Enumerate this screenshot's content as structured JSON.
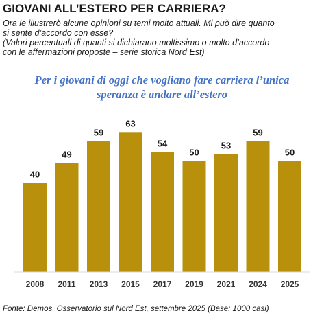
{
  "header": {
    "title": "GIOVANI ALL’ESTERO PER CARRIERA?",
    "subtitle_lines": [
      "Ora le illustrerò alcune opinioni su temi molto attuali. Mi può dire quanto",
      "si sente d’accordo con esse?",
      "(Valori percentuali di quanti si dichiarano moltissimo o molto d’accordo",
      "con le affermazioni proposte – serie storica Nord Est)"
    ]
  },
  "question": {
    "line1": "Per i giovani di oggi che vogliano fare carriera l’unica",
    "line2": "speranza è andare all’estero"
  },
  "footer": {
    "source": "Fonte: Demos, Osservatorio sul Nord Est, settembre 2025 (Base: 1000 casi)"
  },
  "chart_data": {
    "type": "bar",
    "categories": [
      "2008",
      "2011",
      "2013",
      "2015",
      "2017",
      "2019",
      "2021",
      "2024",
      "2025"
    ],
    "values": [
      40,
      49,
      59,
      63,
      54,
      50,
      53,
      59,
      50
    ],
    "ylim": [
      0,
      73
    ],
    "bar_color": "#b8900c",
    "grid": false,
    "legend": false
  }
}
